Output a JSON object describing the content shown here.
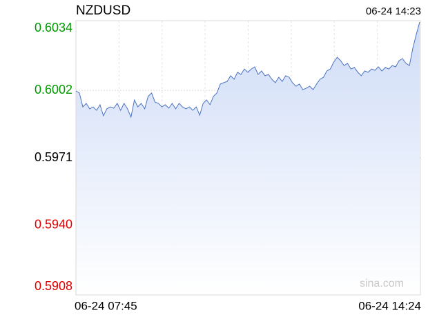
{
  "chart_data": {
    "type": "area",
    "title": "NZDUSD",
    "timestamp": "06-24 14:23",
    "watermark": "sina.com",
    "categories": [
      "06-24 07:45",
      null,
      null,
      null,
      null,
      null,
      null,
      null,
      null,
      null,
      null,
      null,
      null,
      null,
      null,
      null,
      null,
      null,
      null,
      null,
      null,
      null,
      null,
      null,
      null,
      null,
      null,
      null,
      null,
      null,
      null,
      null,
      null,
      null,
      null,
      null,
      null,
      null,
      null,
      null,
      null,
      null,
      null,
      null,
      null,
      null,
      null,
      null,
      null,
      null,
      null,
      null,
      null,
      null,
      null,
      null,
      null,
      null,
      null,
      null,
      null,
      null,
      null,
      null,
      null,
      null,
      null,
      null,
      null,
      null,
      null,
      null,
      null,
      null,
      null,
      null,
      null,
      null,
      null,
      null,
      null,
      null,
      null,
      null,
      null,
      null,
      null,
      null,
      null,
      null,
      null,
      null,
      null,
      null,
      null,
      null,
      null,
      null,
      null,
      null,
      "06-24 14:24"
    ],
    "values": [
      0.60017,
      0.60008,
      0.59944,
      0.5996,
      0.59935,
      0.59944,
      0.59928,
      0.59954,
      0.59903,
      0.59935,
      0.59944,
      0.59938,
      0.5996,
      0.59928,
      0.5996,
      0.59935,
      0.59897,
      0.59976,
      0.59944,
      0.5996,
      0.59935,
      0.59992,
      0.60008,
      0.59966,
      0.5996,
      0.59944,
      0.59954,
      0.59938,
      0.5996,
      0.59935,
      0.5996,
      0.59944,
      0.59935,
      0.59944,
      0.59928,
      0.59944,
      0.59906,
      0.5996,
      0.59976,
      0.59954,
      0.59992,
      0.60008,
      0.60049,
      0.60055,
      0.60061,
      0.60087,
      0.60071,
      0.60103,
      0.60093,
      0.60118,
      0.60103,
      0.60118,
      0.60128,
      0.60093,
      0.60109,
      0.60087,
      0.60093,
      0.60071,
      0.60055,
      0.6008,
      0.60061,
      0.60087,
      0.6008,
      0.60055,
      0.60039,
      0.60049,
      0.60023,
      0.6003,
      0.60039,
      0.60023,
      0.60049,
      0.60071,
      0.6008,
      0.60109,
      0.60118,
      0.6015,
      0.60172,
      0.60156,
      0.60134,
      0.60144,
      0.60118,
      0.60125,
      0.60103,
      0.60087,
      0.60109,
      0.60103,
      0.60118,
      0.60112,
      0.60128,
      0.60109,
      0.60125,
      0.60118,
      0.60134,
      0.60128,
      0.60156,
      0.60166,
      0.60144,
      0.60134,
      0.60213,
      0.60277,
      0.60334
    ],
    "color": "#4a72c4",
    "fill": "#dbe6fb",
    "ylim": [
      0.5908,
      0.6034
    ],
    "yticks": [
      0.5908,
      {
        "value": 0.594,
        "label": "0.5940"
      },
      0.5971,
      0.6002,
      0.6034
    ],
    "ytick_colors": [
      "#e00000",
      "#e00000",
      "#000000",
      "#009900",
      "#009900"
    ],
    "grid": true
  }
}
